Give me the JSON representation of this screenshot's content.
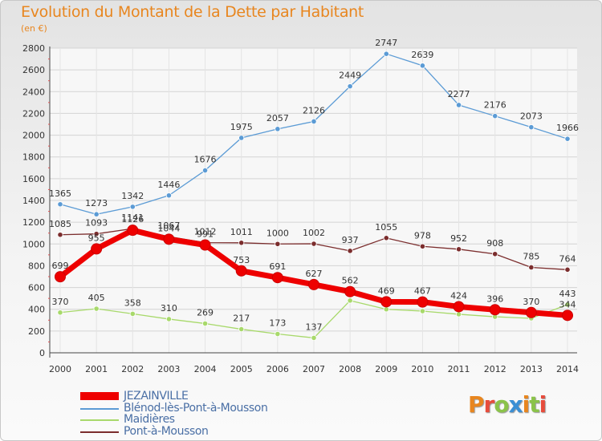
{
  "header": {
    "title": "Evolution du Montant de la Dette par Habitant",
    "subtitle": "(en €)"
  },
  "logo": {
    "text": "Proxiti",
    "colors": [
      "#e8861f",
      "#e74c3c",
      "#8bc34a",
      "#3b8fd4",
      "#e8861f",
      "#8bc34a",
      "#e74c3c"
    ]
  },
  "chart_data": {
    "type": "line",
    "x": [
      "2000",
      "2001",
      "2002",
      "2003",
      "2004",
      "2005",
      "2006",
      "2007",
      "2008",
      "2009",
      "2010",
      "2011",
      "2012",
      "2013",
      "2014"
    ],
    "ylim": [
      0,
      2800
    ],
    "yticks": [
      0,
      200,
      400,
      600,
      800,
      1000,
      1200,
      1400,
      1600,
      1800,
      2000,
      2200,
      2400,
      2600,
      2800
    ],
    "grid": true,
    "legend": "bottom-left",
    "series": [
      {
        "name": "Blénod-lès-Pont-à-Mousson",
        "color": "#5b9bd5",
        "values": [
          1365,
          1273,
          1342,
          1446,
          1676,
          1975,
          2057,
          2126,
          2449,
          2747,
          2639,
          2277,
          2176,
          2073,
          1966
        ],
        "labels": [
          "1365",
          "1273",
          "1342",
          "1446",
          "1676",
          "1975",
          "2057",
          "2126",
          "2449",
          "2747",
          "2639",
          "2277",
          "2176",
          "2073",
          "1966"
        ]
      },
      {
        "name": "Maidières",
        "color": "#a8d96b",
        "values": [
          370,
          405,
          358,
          310,
          269,
          217,
          173,
          137,
          480,
          400,
          383,
          354,
          331,
          317,
          443
        ],
        "labels": [
          "370",
          "405",
          "358",
          "310",
          "269",
          "217",
          "173",
          "137",
          "",
          "",
          "",
          "",
          "",
          "",
          "443"
        ]
      },
      {
        "name": "Pont-à-Mousson",
        "color": "#7b2d2d",
        "values": [
          1085,
          1093,
          1141,
          1067,
          1012,
          1011,
          1000,
          1002,
          937,
          1055,
          978,
          952,
          908,
          785,
          764
        ],
        "labels": [
          "1085",
          "1093",
          "1141",
          "1067",
          "1012",
          "1011",
          "1000",
          "1002",
          "937",
          "1055",
          "978",
          "952",
          "908",
          "785",
          "764"
        ]
      },
      {
        "name": "JEZAINVILLE",
        "color": "#ee0000",
        "values": [
          699,
          955,
          1126,
          1044,
          991,
          753,
          691,
          627,
          562,
          469,
          467,
          424,
          396,
          370,
          344
        ],
        "labels": [
          "699",
          "955",
          "1126",
          "1044",
          "991",
          "753",
          "691",
          "627",
          "562",
          "469",
          "467",
          "424",
          "396",
          "370",
          "344"
        ]
      }
    ],
    "legend_order": [
      "JEZAINVILLE",
      "Blénod-lès-Pont-à-Mousson",
      "Maidières",
      "Pont-à-Mousson"
    ]
  }
}
